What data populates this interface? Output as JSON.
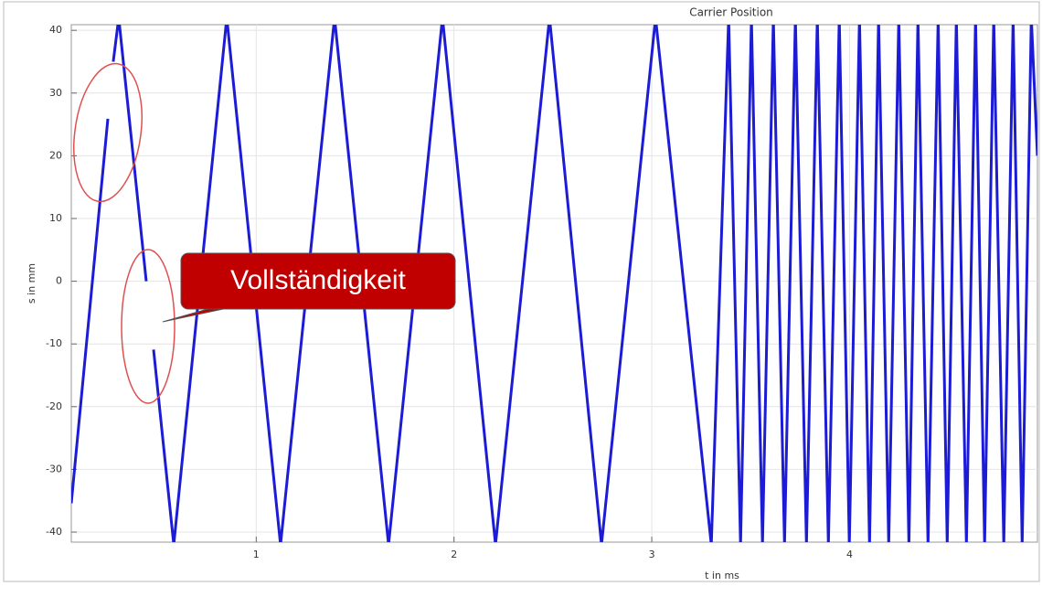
{
  "chart_data": {
    "type": "line",
    "title": "Carrier Position",
    "xlabel": "t in ms",
    "ylabel": "s in mm",
    "annotation": "Vollständigkeit",
    "x": [
      0.065,
      0.25,
      0.264,
      0.277,
      0.305,
      0.444,
      0.462,
      0.481,
      0.583,
      0.851,
      1.123,
      1.396,
      1.669,
      1.942,
      2.21,
      2.483,
      2.746,
      3.019,
      3.301,
      3.389,
      3.449,
      3.504,
      3.56,
      3.615,
      3.671,
      3.726,
      3.782,
      3.837,
      3.893,
      3.948,
      3.999,
      4.05,
      4.101,
      4.147,
      4.198,
      4.249,
      4.3,
      4.346,
      4.397,
      4.448,
      4.494,
      4.54,
      4.591,
      4.637,
      4.683,
      4.729,
      4.78,
      4.827,
      4.873,
      4.919,
      4.95
    ],
    "values": [
      -35.4,
      25.9,
      null,
      35,
      42,
      0,
      null,
      -10.9,
      -42,
      42,
      -42,
      42,
      -42,
      42,
      -42,
      42,
      -42,
      42,
      -42,
      42,
      -42,
      42,
      -42,
      42,
      -42,
      42,
      -42,
      42,
      -42,
      42,
      -42,
      42,
      -42,
      42,
      -42,
      42,
      -42,
      42,
      -42,
      42,
      -42,
      42,
      -42,
      42,
      -42,
      42,
      -42,
      42,
      -42,
      42,
      20
    ],
    "color": "#1c1cd6",
    "xlim": [
      0.065,
      4.95
    ],
    "ylim": [
      -41.6,
      40.9
    ],
    "xticks": [
      1,
      2,
      3,
      4
    ],
    "yticks": [
      -40,
      -30,
      -20,
      -10,
      0,
      10,
      20,
      30,
      40
    ],
    "grid": true
  }
}
